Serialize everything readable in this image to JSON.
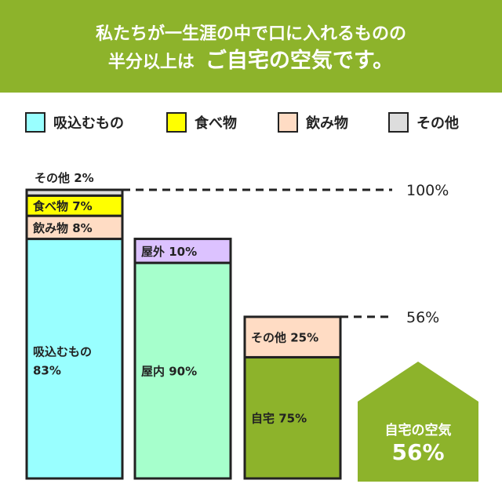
{
  "header": {
    "line1": "私たちが一生涯の中で口に入れるものの",
    "line2_prefix": "半分以上は",
    "line2_emphasis": "ご自宅の空気です。"
  },
  "legend": [
    {
      "label": "吸込むもの",
      "color": "#99ffff"
    },
    {
      "label": "食べ物",
      "color": "#ffff00"
    },
    {
      "label": "飲み物",
      "color": "#ffdcc4"
    },
    {
      "label": "その他",
      "color": "#dddddd"
    }
  ],
  "callout": {
    "line1": "自宅の空気",
    "line2": "56%"
  },
  "chart_data": {
    "type": "bar",
    "subtype": "stacked-percent",
    "ylim": [
      0,
      100
    ],
    "reference_lines": [
      {
        "label": "100%",
        "value": 100
      },
      {
        "label": "56%",
        "value": 56
      }
    ],
    "bars": [
      {
        "total": 100,
        "segments": [
          {
            "label": "吸込むもの",
            "value": 83,
            "display": "吸込むもの\n83%",
            "color": "#99ffff"
          },
          {
            "label": "飲み物",
            "value": 8,
            "display": "飲み物 8%",
            "color": "#ffdcc4"
          },
          {
            "label": "食べ物",
            "value": 7,
            "display": "食べ物 7%",
            "color": "#ffff00"
          },
          {
            "label": "その他",
            "value": 2,
            "display": "その他 2%",
            "color": "#dddddd"
          }
        ]
      },
      {
        "total": 83,
        "segments": [
          {
            "label": "屋内",
            "value": 90,
            "display": "屋内 90%",
            "color": "#a6ffcc"
          },
          {
            "label": "屋外",
            "value": 10,
            "display": "屋外 10%",
            "color": "#dcc2ff"
          }
        ]
      },
      {
        "total": 56,
        "segments": [
          {
            "label": "自宅",
            "value": 75,
            "display": "自宅 75%",
            "color": "#8db32b"
          },
          {
            "label": "その他",
            "value": 25,
            "display": "その他 25%",
            "color": "#ffdcc4"
          }
        ]
      }
    ]
  },
  "colors": {
    "brand_green": "#8db32b",
    "outline": "#222222"
  }
}
